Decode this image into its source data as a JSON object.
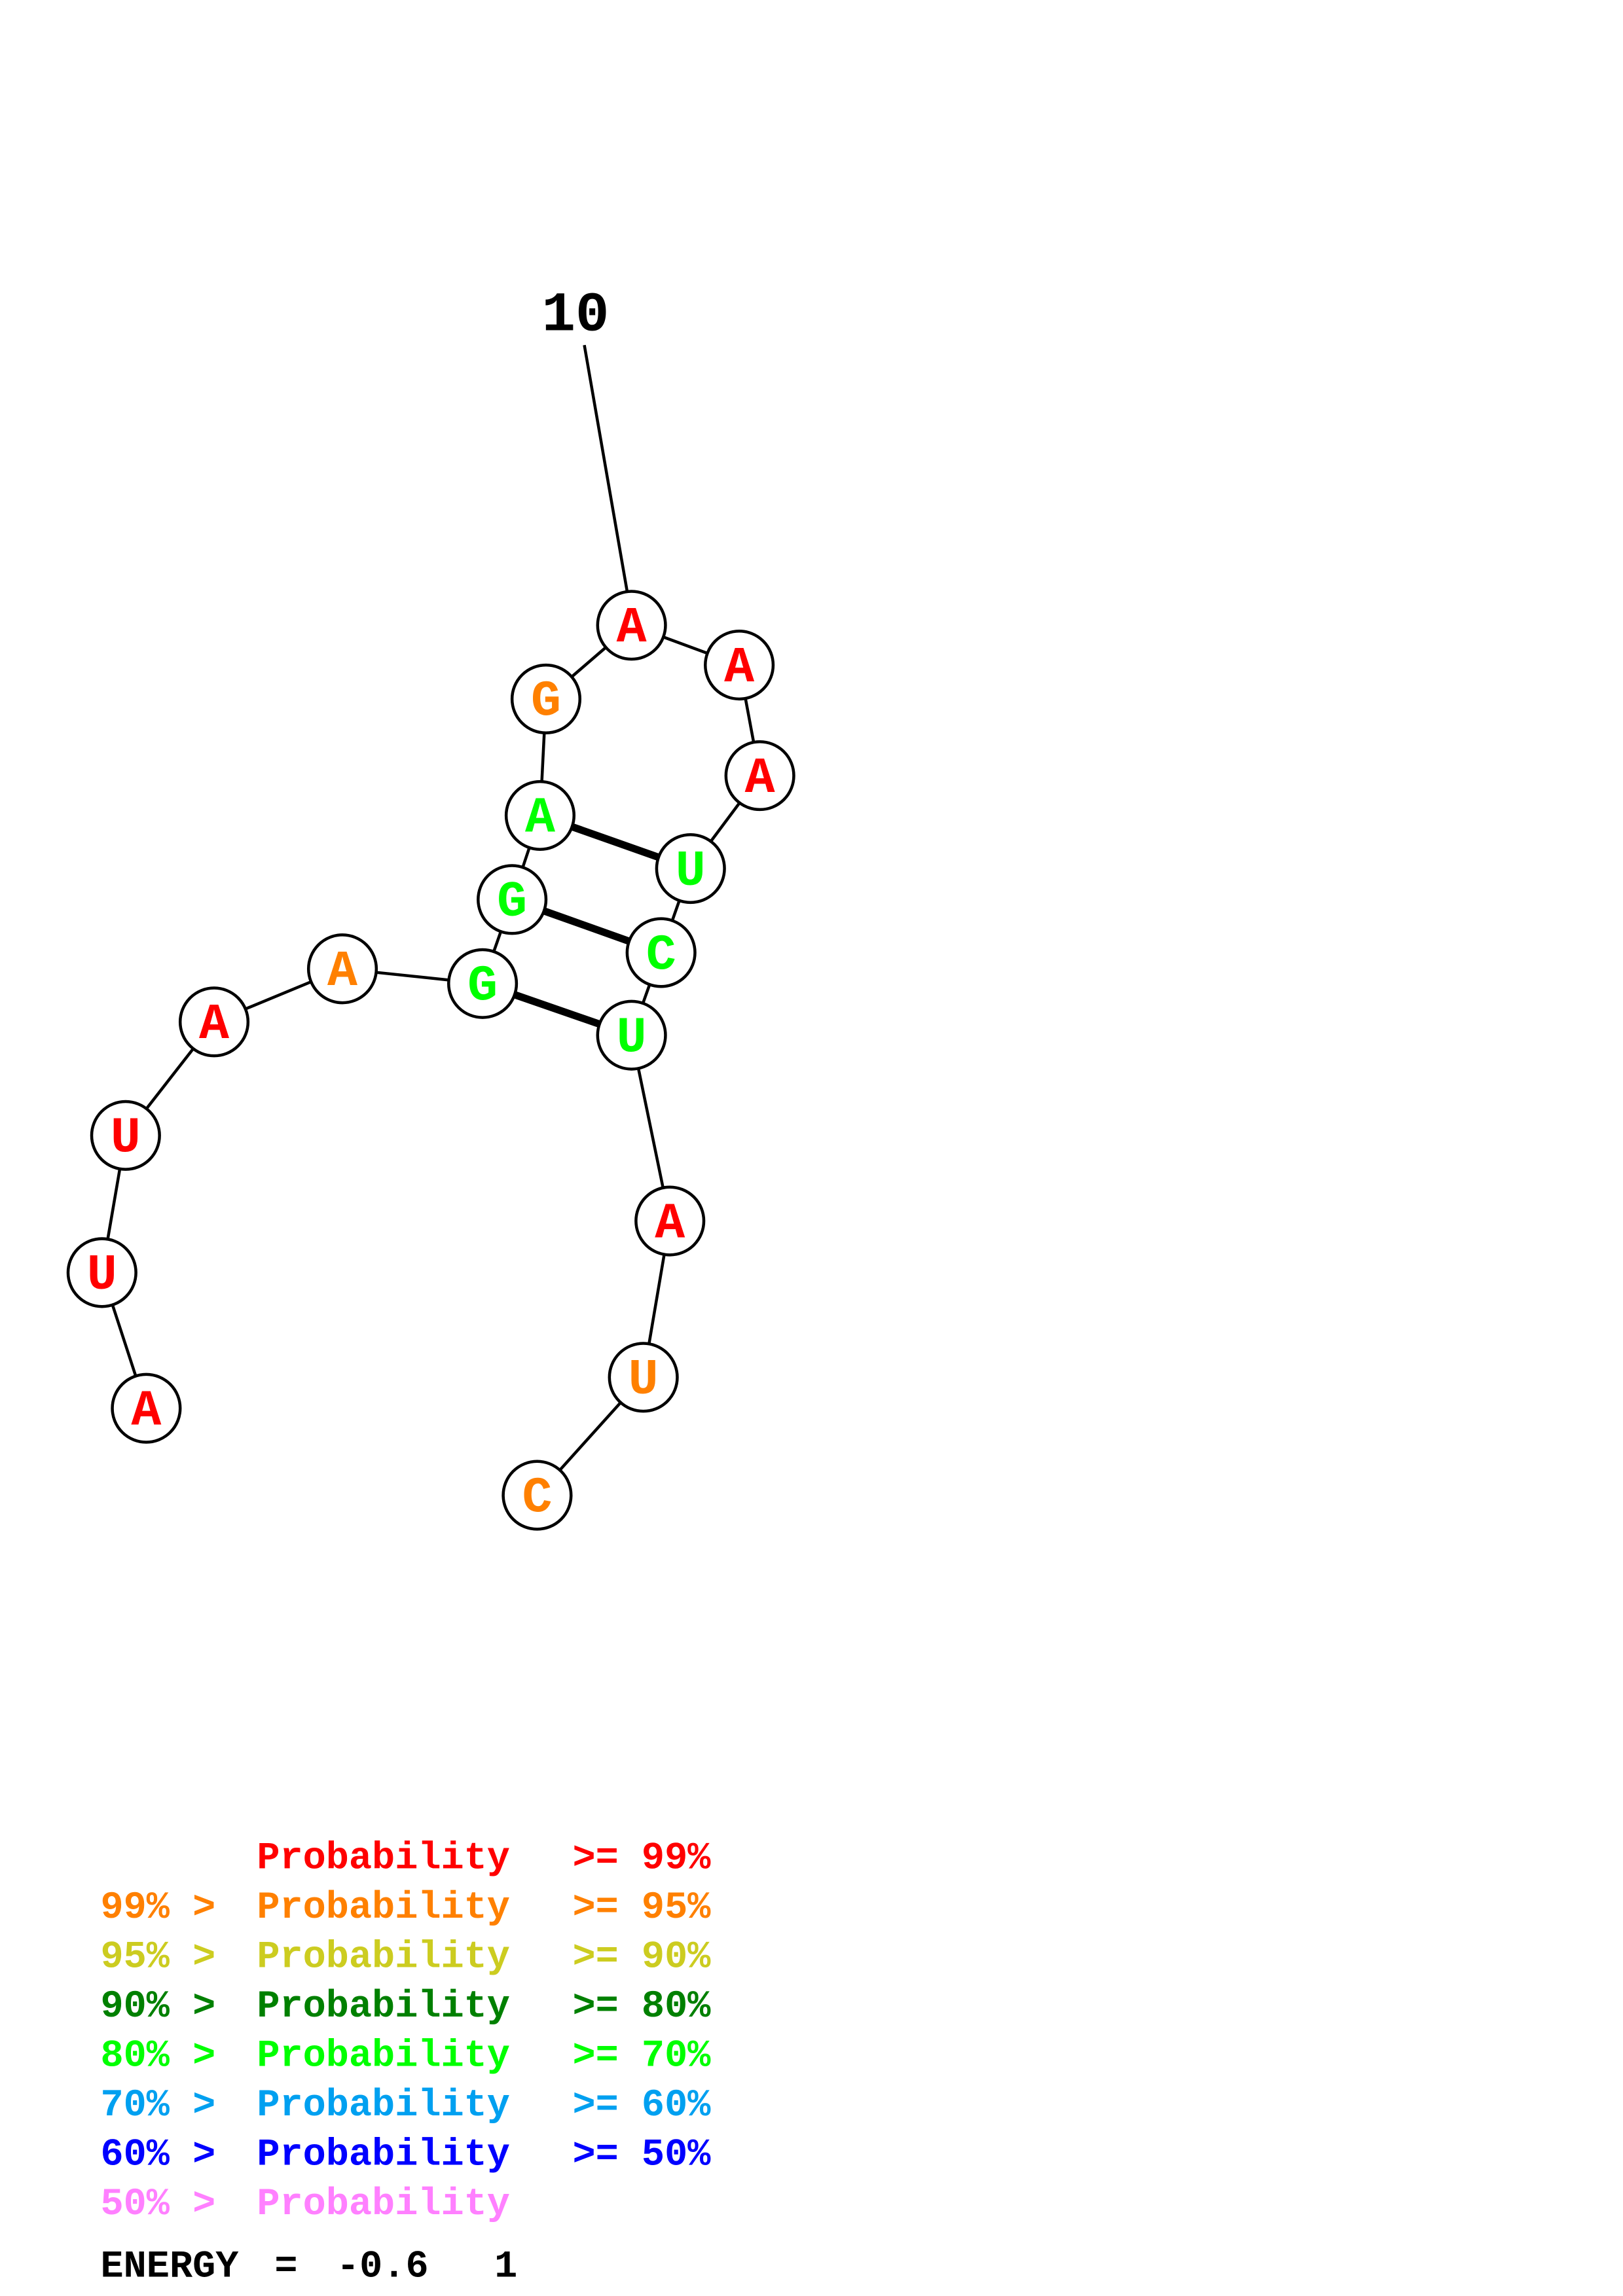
{
  "diagram": {
    "position_label": "10",
    "colors": {
      "p99": "#ff0000",
      "p95": "#ff8000",
      "p90": "#cccc20",
      "p80": "#008000",
      "p70": "#00ff00",
      "p60": "#00a0f0",
      "p50": "#0000ff",
      "below50": "#ff80ff"
    },
    "nucleotides": [
      {
        "base": "A",
        "prob_class": "p99"
      },
      {
        "base": "U",
        "prob_class": "p99"
      },
      {
        "base": "U",
        "prob_class": "p99"
      },
      {
        "base": "A",
        "prob_class": "p99"
      },
      {
        "base": "A",
        "prob_class": "p95"
      },
      {
        "base": "G",
        "prob_class": "p70"
      },
      {
        "base": "G",
        "prob_class": "p70"
      },
      {
        "base": "A",
        "prob_class": "p70"
      },
      {
        "base": "G",
        "prob_class": "p95"
      },
      {
        "base": "A",
        "prob_class": "p99"
      },
      {
        "base": "A",
        "prob_class": "p99"
      },
      {
        "base": "A",
        "prob_class": "p99"
      },
      {
        "base": "U",
        "prob_class": "p70"
      },
      {
        "base": "C",
        "prob_class": "p70"
      },
      {
        "base": "U",
        "prob_class": "p70"
      },
      {
        "base": "A",
        "prob_class": "p99"
      },
      {
        "base": "U",
        "prob_class": "p95"
      },
      {
        "base": "C",
        "prob_class": "p95"
      }
    ],
    "pairs": [
      [
        8,
        13
      ],
      [
        7,
        14
      ],
      [
        6,
        15
      ]
    ]
  },
  "legend": [
    {
      "prefix": "",
      "label": "Probability",
      "suffix": ">= 99%",
      "color_key": "p99"
    },
    {
      "prefix": "99% >",
      "label": "Probability",
      "suffix": ">= 95%",
      "color_key": "p95"
    },
    {
      "prefix": "95% >",
      "label": "Probability",
      "suffix": ">= 90%",
      "color_key": "p90"
    },
    {
      "prefix": "90% >",
      "label": "Probability",
      "suffix": ">= 80%",
      "color_key": "p80"
    },
    {
      "prefix": "80% >",
      "label": "Probability",
      "suffix": ">= 70%",
      "color_key": "p70"
    },
    {
      "prefix": "70% >",
      "label": "Probability",
      "suffix": ">= 60%",
      "color_key": "p60"
    },
    {
      "prefix": "60% >",
      "label": "Probability",
      "suffix": ">= 50%",
      "color_key": "p50"
    },
    {
      "prefix": "50% >",
      "label": "Probability",
      "suffix": "",
      "color_key": "below50"
    }
  ],
  "energy": {
    "label": "ENERGY",
    "equals": "=",
    "value": "-0.6",
    "structure_number": "1"
  }
}
